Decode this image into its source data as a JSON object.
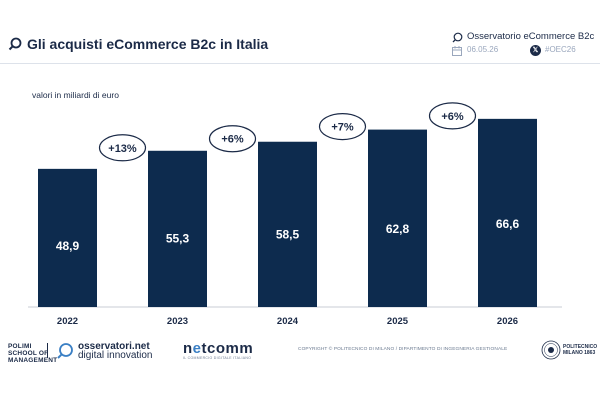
{
  "header": {
    "title": "Gli acquisti eCommerce B2c in Italia",
    "observatory": "Osservatorio eCommerce B2c",
    "date": "06.05.26",
    "hashtag": "#OEC26"
  },
  "chart_data": {
    "type": "bar",
    "units_label": "valori in miliardi di euro",
    "categories": [
      "2022",
      "2023",
      "2024",
      "2025",
      "2026"
    ],
    "values": [
      48.9,
      55.3,
      58.5,
      62.8,
      66.6
    ],
    "value_labels": [
      "48,9",
      "55,3",
      "58,5",
      "62,8",
      "66,6"
    ],
    "growth_labels": [
      "+13%",
      "+6%",
      "+7%",
      "+6%"
    ],
    "ylim": [
      0,
      70
    ],
    "grid": false,
    "colors": {
      "bar": "#0d2b4e",
      "bubble_border": "#1b2a47",
      "text": "#1b2a47"
    }
  },
  "footer": {
    "polimi_line1": "POLIMI",
    "polimi_line2": "SCHOOL OF",
    "polimi_line3": "MANAGEMENT",
    "observatori_line1": "osservatori.net",
    "observatori_line2": "digital innovation",
    "netcomm_pre": "n",
    "netcomm_o": "e",
    "netcomm_post": "tcomm",
    "netcomm_sub": "IL COMMERCIO DIGITALE ITALIANO",
    "copyright": "COPYRIGHT © POLITECNICO DI MILANO / DIPARTIMENTO DI INGEGNERIA GESTIONALE",
    "politecnico_line1": "POLITECNICO",
    "politecnico_line2": "MILANO 1863"
  }
}
